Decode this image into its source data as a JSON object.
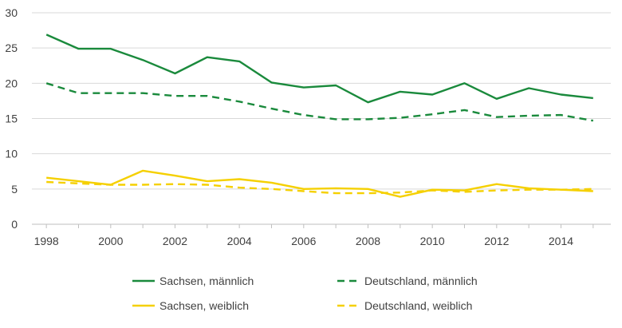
{
  "chart_data": {
    "type": "line",
    "title": "",
    "xlabel": "",
    "ylabel": "",
    "x": [
      1998,
      1999,
      2000,
      2001,
      2002,
      2003,
      2004,
      2005,
      2006,
      2007,
      2008,
      2009,
      2010,
      2011,
      2012,
      2013,
      2014,
      2015
    ],
    "xticks": [
      1998,
      2000,
      2002,
      2004,
      2006,
      2008,
      2010,
      2012,
      2014
    ],
    "yticks": [
      0,
      5,
      10,
      15,
      20,
      25,
      30
    ],
    "ylim": [
      0,
      30
    ],
    "xlim": [
      1998,
      2015
    ],
    "grid": "horizontal",
    "legend_position": "bottom",
    "series": [
      {
        "name": "Sachsen, männlich",
        "color": "#1a8a3c",
        "dash": "solid",
        "values": [
          26.9,
          24.9,
          24.9,
          23.3,
          21.4,
          23.7,
          23.1,
          20.1,
          19.4,
          19.7,
          17.3,
          18.8,
          18.4,
          20.0,
          17.8,
          19.3,
          18.4,
          17.9
        ]
      },
      {
        "name": "Deutschland, männlich",
        "color": "#1a8a3c",
        "dash": "dashed",
        "values": [
          20.0,
          18.6,
          18.6,
          18.6,
          18.2,
          18.2,
          17.4,
          16.4,
          15.5,
          14.9,
          14.9,
          15.1,
          15.6,
          16.2,
          15.2,
          15.4,
          15.5,
          14.7
        ]
      },
      {
        "name": "Sachsen, weiblich",
        "color": "#f5d000",
        "dash": "solid",
        "values": [
          6.6,
          6.1,
          5.6,
          7.6,
          6.9,
          6.1,
          6.4,
          5.9,
          5.0,
          5.1,
          5.0,
          3.9,
          4.9,
          4.8,
          5.7,
          5.1,
          4.9,
          4.7
        ]
      },
      {
        "name": "Deutschland, weiblich",
        "color": "#f5d000",
        "dash": "dashed",
        "values": [
          6.0,
          5.8,
          5.6,
          5.6,
          5.7,
          5.6,
          5.2,
          5.0,
          4.7,
          4.4,
          4.4,
          4.5,
          4.8,
          4.6,
          4.8,
          4.9,
          4.9,
          5.0
        ]
      }
    ]
  }
}
